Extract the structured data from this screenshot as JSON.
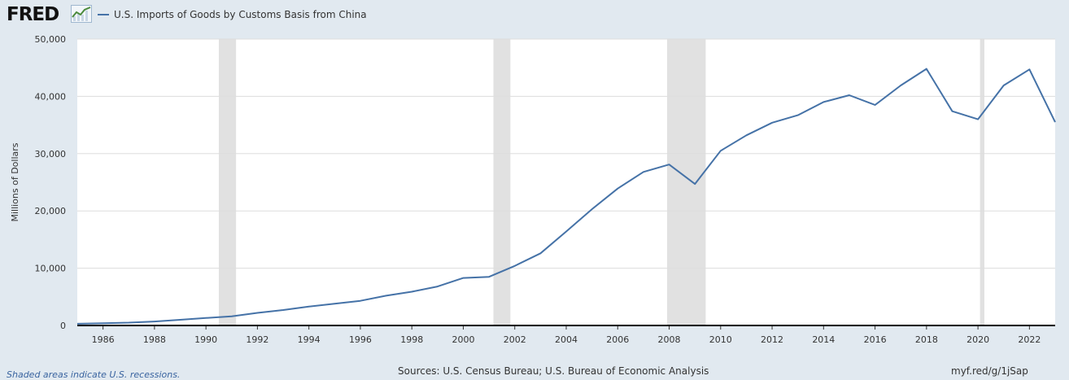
{
  "header": {
    "logo_text": "FRED",
    "logo_icon": "line-chart-icon",
    "series_title": "U.S. Imports of Goods by Customs Basis from China"
  },
  "footer": {
    "recession_note": "Shaded areas indicate U.S. recessions.",
    "sources": "Sources: U.S. Census Bureau; U.S. Bureau of Economic Analysis",
    "short_url": "myf.red/g/1jSap"
  },
  "colors": {
    "background": "#e1e9f0",
    "plot_background": "#ffffff",
    "series_line": "#4572a7",
    "recession_shade": "#e1e1e1",
    "gridline": "#dddddd"
  },
  "chart_data": {
    "type": "line",
    "ylabel": "Millions of Dollars",
    "ylim": [
      0,
      50000
    ],
    "xlim": [
      1985,
      2023
    ],
    "y_ticks": [
      0,
      10000,
      20000,
      30000,
      40000,
      50000
    ],
    "y_tick_labels": [
      "0",
      "10,000",
      "20,000",
      "30,000",
      "40,000",
      "50,000"
    ],
    "x_ticks": [
      1986,
      1988,
      1990,
      1992,
      1994,
      1996,
      1998,
      2000,
      2002,
      2004,
      2006,
      2008,
      2010,
      2012,
      2014,
      2016,
      2018,
      2020,
      2022
    ],
    "x_tick_labels": [
      "1986",
      "1988",
      "1990",
      "1992",
      "1994",
      "1996",
      "1998",
      "2000",
      "2002",
      "2004",
      "2006",
      "2008",
      "2010",
      "2012",
      "2014",
      "2016",
      "2018",
      "2020",
      "2022"
    ],
    "grid": "horizontal",
    "legend": "top-left",
    "recessions": [
      [
        1990.5,
        1991.17
      ],
      [
        2001.17,
        2001.83
      ],
      [
        2007.92,
        2009.42
      ],
      [
        2020.08,
        2020.25
      ]
    ],
    "series": [
      {
        "name": "U.S. Imports of Goods by Customs Basis from China",
        "x": [
          1985,
          1986,
          1987,
          1988,
          1989,
          1990,
          1991,
          1992,
          1993,
          1994,
          1995,
          1996,
          1997,
          1998,
          1999,
          2000,
          2001,
          2002,
          2003,
          2004,
          2005,
          2006,
          2007,
          2008,
          2009,
          2010,
          2011,
          2012,
          2013,
          2014,
          2015,
          2016,
          2017,
          2018,
          2019,
          2020,
          2021,
          2022,
          2023
        ],
        "values": [
          300,
          400,
          500,
          700,
          1000,
          1300,
          1600,
          2200,
          2700,
          3300,
          3800,
          4300,
          5200,
          5900,
          6800,
          8300,
          8500,
          10400,
          12600,
          16400,
          20300,
          23900,
          26800,
          28100,
          24700,
          30500,
          33200,
          35400,
          36700,
          39000,
          40200,
          38500,
          41900,
          44800,
          37400,
          36000,
          41900,
          44700,
          35500
        ]
      }
    ]
  }
}
